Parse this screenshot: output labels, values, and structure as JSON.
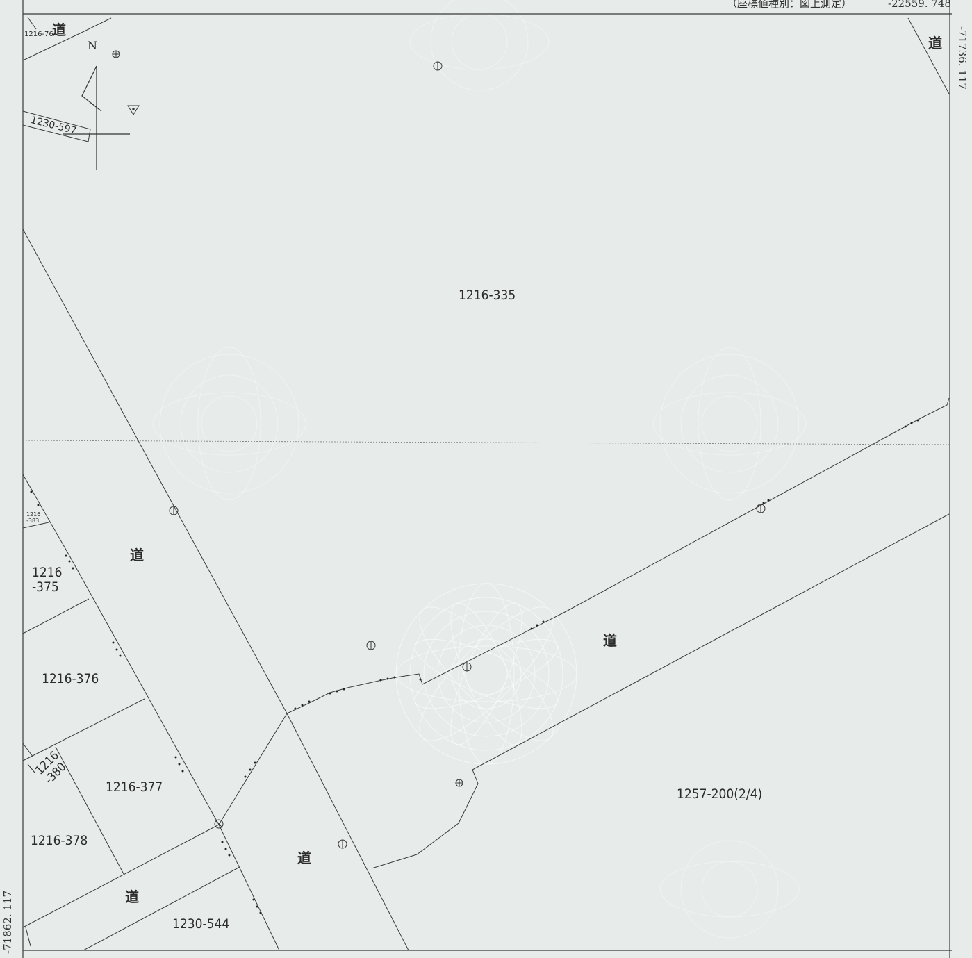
{
  "header": {
    "coord_type_label": "（座標値種別：図上測定）",
    "coord_top_right": "-22559. 748"
  },
  "margins": {
    "coord_right_top": "-71736. 117",
    "coord_left_bottom": "-71862. 117"
  },
  "compass": {
    "north_label": "N"
  },
  "parcels": {
    "p_1216_335": "1216-335",
    "p_1216_375": "1216\n-375",
    "p_1216_376": "1216-376",
    "p_1216_377": "1216-377",
    "p_1216_378": "1216-378",
    "p_1216_380": "1216\n-380",
    "p_1216_383": "1216\n-383",
    "p_1216_76": "1216-76",
    "p_1230_544": "1230-544",
    "p_1230_597": "1230-597",
    "p_1257_200": "1257-200(2/4)"
  },
  "roads": {
    "label": "道"
  },
  "colors": {
    "background": "#e7ecea",
    "line": "#3a3a3a",
    "watermark": "#ffffff"
  }
}
